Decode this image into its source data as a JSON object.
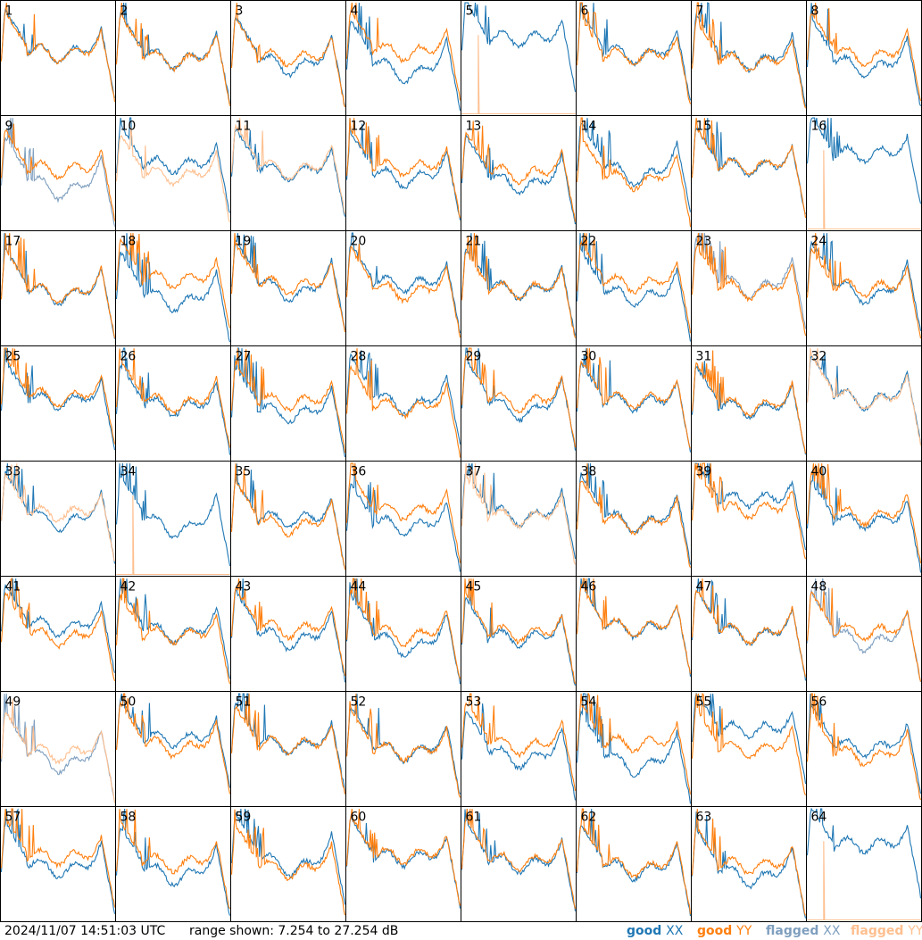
{
  "chart_data": {
    "type": "line",
    "panel_count": 64,
    "grid_columns": 8,
    "grid_rows": 8,
    "panel_labels": [
      "1",
      "2",
      "3",
      "4",
      "5",
      "6",
      "7",
      "8",
      "9",
      "10",
      "11",
      "12",
      "13",
      "14",
      "15",
      "16",
      "17",
      "18",
      "19",
      "20",
      "21",
      "22",
      "23",
      "24",
      "25",
      "26",
      "27",
      "28",
      "29",
      "30",
      "31",
      "32",
      "33",
      "34",
      "35",
      "36",
      "37",
      "38",
      "39",
      "40",
      "41",
      "42",
      "43",
      "44",
      "45",
      "46",
      "47",
      "48",
      "49",
      "50",
      "51",
      "52",
      "53",
      "54",
      "55",
      "56",
      "57",
      "58",
      "59",
      "60",
      "61",
      "62",
      "63",
      "64"
    ],
    "y_range_db": [
      7.254,
      27.254
    ],
    "series": [
      {
        "name": "good XX",
        "color": "#1f77b4"
      },
      {
        "name": "good YY",
        "color": "#ff7f0e"
      },
      {
        "name": "flagged XX",
        "color": "#7f9fbf"
      },
      {
        "name": "flagged YY",
        "color": "#ffbf8f"
      }
    ],
    "flagged_xx_panels": [
      9,
      23,
      48,
      49
    ],
    "flagged_yy_panels": [
      10,
      11,
      32,
      33,
      37,
      49
    ],
    "dropout_xx_panels": [
      5,
      16,
      39,
      55,
      64
    ],
    "dropout_yy_panels": [
      5,
      16,
      34,
      64
    ],
    "grid": false
  },
  "footer": {
    "timestamp": "2024/11/07 14:51:03 UTC",
    "range_text": "range shown: 7.254 to 27.254 dB"
  },
  "legend": [
    {
      "status": "good",
      "pol": "XX",
      "color": "#1f77b4"
    },
    {
      "status": "good",
      "pol": "YY",
      "color": "#ff7f0e"
    },
    {
      "status": "flagged",
      "pol": "XX",
      "color": "#7f9fbf"
    },
    {
      "status": "flagged",
      "pol": "YY",
      "color": "#ffbf8f"
    }
  ]
}
